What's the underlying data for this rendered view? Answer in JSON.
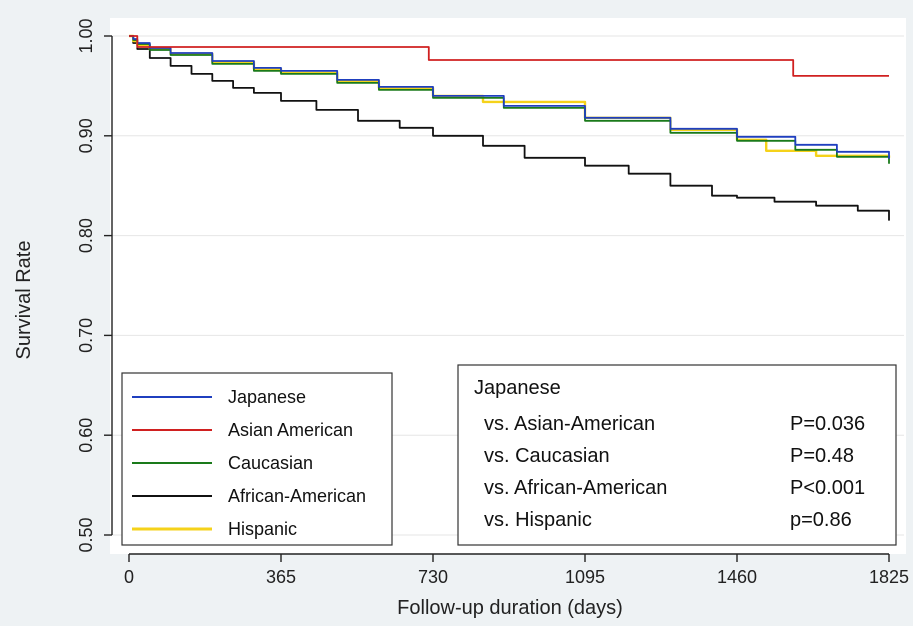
{
  "chart_data": {
    "type": "line",
    "step": true,
    "xlabel": "Follow-up duration (days)",
    "ylabel": "Survival Rate",
    "xlim": [
      0,
      1825
    ],
    "ylim": [
      0.5,
      1.0
    ],
    "x_ticks": [
      0,
      365,
      730,
      1095,
      1460,
      1825
    ],
    "y_ticks": [
      0.5,
      0.6,
      0.7,
      0.8,
      0.9,
      1.0
    ],
    "y_tick_labels": [
      "0.50",
      "0.60",
      "0.70",
      "0.80",
      "0.90",
      "1.00"
    ],
    "grid": "horizontal",
    "legend_position": "bottom-left",
    "series": [
      {
        "name": "Japanese",
        "color": "#1f3fbf",
        "x": [
          0,
          10,
          20,
          50,
          100,
          200,
          300,
          365,
          500,
          600,
          730,
          900,
          1095,
          1300,
          1460,
          1600,
          1700,
          1825
        ],
        "y": [
          1.0,
          0.997,
          0.993,
          0.988,
          0.983,
          0.975,
          0.968,
          0.965,
          0.956,
          0.949,
          0.94,
          0.93,
          0.918,
          0.907,
          0.899,
          0.891,
          0.884,
          0.877
        ]
      },
      {
        "name": "Asian American",
        "color": "#d02020",
        "x": [
          0,
          20,
          20,
          720,
          720,
          1595,
          1595,
          1825
        ],
        "y": [
          1.0,
          1.0,
          0.989,
          0.989,
          0.976,
          0.976,
          0.96,
          0.96
        ]
      },
      {
        "name": "Caucasian",
        "color": "#1a7a1a",
        "x": [
          0,
          10,
          20,
          50,
          100,
          200,
          300,
          365,
          500,
          600,
          730,
          900,
          1095,
          1300,
          1460,
          1600,
          1700,
          1825
        ],
        "y": [
          1.0,
          0.996,
          0.992,
          0.986,
          0.981,
          0.972,
          0.965,
          0.962,
          0.953,
          0.946,
          0.938,
          0.928,
          0.915,
          0.903,
          0.895,
          0.886,
          0.879,
          0.872
        ]
      },
      {
        "name": "African-American",
        "color": "#111111",
        "x": [
          0,
          10,
          20,
          50,
          100,
          150,
          200,
          250,
          300,
          365,
          450,
          550,
          650,
          730,
          850,
          950,
          1095,
          1200,
          1300,
          1400,
          1460,
          1550,
          1650,
          1750,
          1825
        ],
        "y": [
          1.0,
          0.993,
          0.987,
          0.978,
          0.97,
          0.962,
          0.955,
          0.948,
          0.943,
          0.935,
          0.926,
          0.915,
          0.908,
          0.9,
          0.89,
          0.878,
          0.87,
          0.862,
          0.85,
          0.84,
          0.838,
          0.834,
          0.83,
          0.825,
          0.815
        ]
      },
      {
        "name": "Hispanic",
        "color": "#f5d21a",
        "x": [
          0,
          10,
          20,
          50,
          100,
          200,
          300,
          365,
          500,
          600,
          730,
          850,
          1095,
          1300,
          1460,
          1530,
          1530,
          1650,
          1825
        ],
        "y": [
          1.0,
          0.995,
          0.991,
          0.987,
          0.982,
          0.974,
          0.967,
          0.963,
          0.955,
          0.948,
          0.94,
          0.934,
          0.918,
          0.906,
          0.896,
          0.892,
          0.885,
          0.88,
          0.878
        ]
      }
    ],
    "stats_box": {
      "title": "Japanese",
      "rows": [
        {
          "label": "vs. Asian-American",
          "value": "P=0.036"
        },
        {
          "label": "vs. Caucasian",
          "value": "P=0.48"
        },
        {
          "label": "vs. African-American",
          "value": "P<0.001"
        },
        {
          "label": "vs. Hispanic",
          "value": "p=0.86"
        }
      ]
    }
  }
}
